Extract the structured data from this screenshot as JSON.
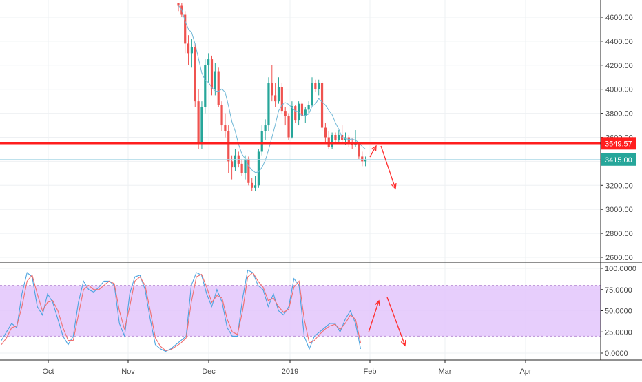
{
  "colors": {
    "up": "#26a69a",
    "down": "#ef5350",
    "ma": "#6fb7d6",
    "resistance": "#ff1e1e",
    "price_line": "#a9d7e6",
    "price_label_bg": "#26a69a",
    "stoch_k": "#4aa3df",
    "stoch_d": "#f06f6f",
    "stoch_band": "#e3c6fb",
    "stoch_band_edge": "#b98fd6",
    "annotation": "#ff2b2b"
  },
  "chart_data": [
    {
      "type": "candlestick",
      "title": "",
      "x_ticks": [
        "Oct",
        "Nov",
        "Dec",
        "2019",
        "Feb",
        "Mar",
        "Apr"
      ],
      "y_ticks": [
        "4600.00",
        "4400.00",
        "4200.00",
        "4000.00",
        "3800.00",
        "3600.00",
        "3400.00",
        "3200.00",
        "3000.00",
        "2800.00",
        "2600.00"
      ],
      "ylim": [
        2550,
        4720
      ],
      "grid": true,
      "resistance_level": 3549.57,
      "resistance_label": "3549.57",
      "last_price": 3415.0,
      "last_price_label": "3415.00",
      "start_date": "2018-11-19",
      "candles": [
        [
          4720,
          4720,
          4650,
          4700
        ],
        [
          4700,
          4720,
          4600,
          4620
        ],
        [
          4620,
          4650,
          4300,
          4380
        ],
        [
          4380,
          4450,
          4200,
          4300
        ],
        [
          4300,
          4420,
          4180,
          4350
        ],
        [
          4350,
          4380,
          3850,
          3900
        ],
        [
          3900,
          4000,
          3500,
          3550
        ],
        [
          3550,
          3900,
          3500,
          3850
        ],
        [
          3850,
          4250,
          3800,
          4200
        ],
        [
          4200,
          4300,
          4050,
          4250
        ],
        [
          4250,
          4280,
          3950,
          4000
        ],
        [
          4000,
          4220,
          3950,
          4150
        ],
        [
          4150,
          4180,
          3850,
          3870
        ],
        [
          3870,
          3900,
          3650,
          3700
        ],
        [
          3700,
          3800,
          3600,
          3650
        ],
        [
          3650,
          3700,
          3300,
          3400
        ],
        [
          3400,
          3450,
          3250,
          3350
        ],
        [
          3350,
          3500,
          3320,
          3450
        ],
        [
          3450,
          3480,
          3350,
          3380
        ],
        [
          3380,
          3420,
          3280,
          3300
        ],
        [
          3300,
          3450,
          3250,
          3420
        ],
        [
          3420,
          3440,
          3200,
          3220
        ],
        [
          3220,
          3260,
          3150,
          3180
        ],
        [
          3180,
          3280,
          3150,
          3200
        ],
        [
          3200,
          3500,
          3180,
          3480
        ],
        [
          3480,
          3700,
          3450,
          3650
        ],
        [
          3650,
          3750,
          3580,
          3700
        ],
        [
          3700,
          4100,
          3650,
          4050
        ],
        [
          4050,
          4200,
          3900,
          3950
        ],
        [
          3950,
          4050,
          3850,
          3900
        ],
        [
          3900,
          4100,
          3880,
          4020
        ],
        [
          4020,
          4050,
          3800,
          3820
        ],
        [
          3820,
          3850,
          3700,
          3780
        ],
        [
          3780,
          3800,
          3580,
          3600
        ],
        [
          3600,
          3900,
          3590,
          3860
        ],
        [
          3860,
          3870,
          3720,
          3740
        ],
        [
          3740,
          3900,
          3700,
          3880
        ],
        [
          3880,
          3900,
          3750,
          3780
        ],
        [
          3780,
          3850,
          3720,
          3830
        ],
        [
          3830,
          3900,
          3800,
          3870
        ],
        [
          3870,
          4100,
          3850,
          4050
        ],
        [
          4050,
          4080,
          3980,
          4000
        ],
        [
          4000,
          4080,
          3950,
          4050
        ],
        [
          4050,
          4070,
          3650,
          3680
        ],
        [
          3680,
          3720,
          3560,
          3600
        ],
        [
          3600,
          3650,
          3500,
          3520
        ],
        [
          3520,
          3640,
          3500,
          3620
        ],
        [
          3620,
          3640,
          3560,
          3580
        ],
        [
          3580,
          3660,
          3560,
          3620
        ],
        [
          3620,
          3700,
          3560,
          3580
        ],
        [
          3580,
          3640,
          3540,
          3600
        ],
        [
          3600,
          3620,
          3520,
          3560
        ],
        [
          3560,
          3590,
          3500,
          3540
        ],
        [
          3540,
          3660,
          3520,
          3550
        ],
        [
          3550,
          3560,
          3420,
          3440
        ],
        [
          3440,
          3480,
          3360,
          3400
        ],
        [
          3400,
          3440,
          3360,
          3415
        ]
      ]
    },
    {
      "type": "line",
      "title": "",
      "y_ticks": [
        "100.0000",
        "75.0000",
        "50.0000",
        "25.0000",
        "0.0000"
      ],
      "ylim": [
        -5,
        105
      ],
      "band": [
        20,
        80
      ],
      "grid": true,
      "series": [
        {
          "values": [
            15,
            25,
            35,
            30,
            70,
            95,
            90,
            55,
            45,
            70,
            60,
            40,
            20,
            10,
            20,
            60,
            85,
            75,
            72,
            78,
            85,
            85,
            80,
            35,
            20,
            70,
            90,
            92,
            75,
            40,
            10,
            5,
            2,
            5,
            10,
            15,
            20,
            80,
            95,
            92,
            70,
            55,
            75,
            60,
            30,
            20,
            20,
            65,
            98,
            95,
            80,
            75,
            55,
            70,
            50,
            45,
            55,
            88,
            80,
            20,
            5,
            20,
            25,
            30,
            35,
            35,
            25,
            40,
            50,
            35,
            5
          ]
        },
        {
          "values": [
            10,
            18,
            30,
            32,
            55,
            85,
            92,
            70,
            50,
            60,
            62,
            50,
            30,
            15,
            15,
            45,
            75,
            80,
            75,
            75,
            80,
            85,
            82,
            50,
            28,
            55,
            85,
            90,
            80,
            50,
            18,
            8,
            3,
            4,
            8,
            12,
            18,
            60,
            90,
            93,
            78,
            60,
            68,
            65,
            40,
            25,
            22,
            50,
            90,
            95,
            85,
            78,
            62,
            65,
            55,
            48,
            52,
            78,
            85,
            40,
            12,
            15,
            22,
            28,
            32,
            34,
            28,
            35,
            45,
            40,
            12
          ]
        }
      ]
    }
  ]
}
